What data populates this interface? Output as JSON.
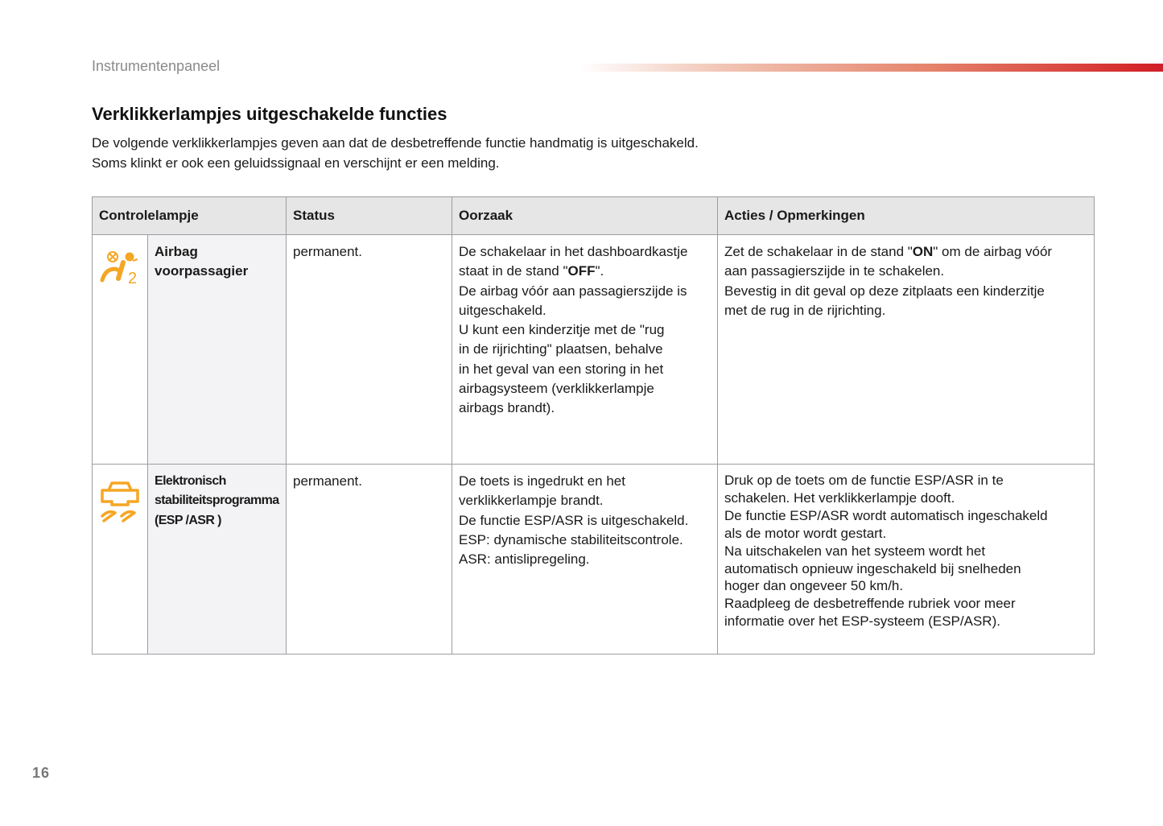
{
  "header": {
    "section": "Instrumentenpaneel",
    "accent_color": "#d01f2a"
  },
  "title": "Verklikkerlampjes uitgeschakelde functies",
  "intro": [
    "De volgende verklikkerlampjes geven aan dat de desbetreffende functie handmatig is uitgeschakeld.",
    "Soms klinkt er ook een geluidssignaal en verschijnt er een melding."
  ],
  "table": {
    "headers": [
      "Controlelampje",
      "Status",
      "Oorzaak",
      "Acties / Opmerkingen"
    ],
    "icon_color": "#f5a623",
    "rows": [
      {
        "icon": "airbag-off-passenger-icon",
        "name": [
          "Airbag",
          "voorpassagier"
        ],
        "status": "permanent.",
        "cause": [
          [
            {
              "t": "De schakelaar in het dashboardkastje"
            }
          ],
          [
            {
              "t": "staat in de stand \""
            },
            {
              "t": "OFF",
              "b": true
            },
            {
              "t": "\"."
            }
          ],
          [
            {
              "t": "De airbag vóór aan passagierszijde is"
            }
          ],
          [
            {
              "t": "uitgeschakeld."
            }
          ],
          [
            {
              "t": "U kunt een kinderzitje met de \"rug"
            }
          ],
          [
            {
              "t": "in de rijrichting\" plaatsen, behalve"
            }
          ],
          [
            {
              "t": "in het geval van een storing in het"
            }
          ],
          [
            {
              "t": "airbagsysteem (verklikkerlampje"
            }
          ],
          [
            {
              "t": "airbags brandt)."
            }
          ]
        ],
        "actions": [
          [
            {
              "t": "Zet de schakelaar in de stand \""
            },
            {
              "t": "ON",
              "b": true
            },
            {
              "t": "\" om de airbag vóór"
            }
          ],
          [
            {
              "t": "aan passagierszijde in te schakelen."
            }
          ],
          [
            {
              "t": "Bevestig in dit geval op deze zitplaats een kinderzitje"
            }
          ],
          [
            {
              "t": "met de rug in de rijrichting."
            }
          ]
        ]
      },
      {
        "icon": "esp-off-icon",
        "name": [
          "Elektronisch",
          "stabiliteitsprogramma",
          "(ESP /ASR )"
        ],
        "status": "permanent.",
        "cause": [
          [
            {
              "t": "De toets is ingedrukt en het"
            }
          ],
          [
            {
              "t": "verklikkerlampje brandt."
            }
          ],
          [
            {
              "t": "De functie ESP/ASR is uitgeschakeld."
            }
          ],
          [
            {
              "t": "ESP: dynamische stabiliteitscontrole."
            }
          ],
          [
            {
              "t": "ASR: antislipregeling."
            }
          ]
        ],
        "actions": [
          [
            {
              "t": "Druk op de toets om de functie ESP/ASR in te"
            }
          ],
          [
            {
              "t": "schakelen. Het verklikkerlampje dooft."
            }
          ],
          [
            {
              "t": "De functie ESP/ASR wordt automatisch ingeschakeld"
            }
          ],
          [
            {
              "t": "als de motor wordt gestart."
            }
          ],
          [
            {
              "t": "Na uitschakelen van het systeem wordt het"
            }
          ],
          [
            {
              "t": "automatisch opnieuw ingeschakeld bij snelheden"
            }
          ],
          [
            {
              "t": "hoger dan ongeveer 50 km/h."
            }
          ],
          [
            {
              "t": "Raadpleeg de desbetreffende rubriek voor meer"
            }
          ],
          [
            {
              "t": "informatie over het ESP-systeem (ESP/ASR)."
            }
          ]
        ]
      }
    ]
  },
  "page_number": "16"
}
